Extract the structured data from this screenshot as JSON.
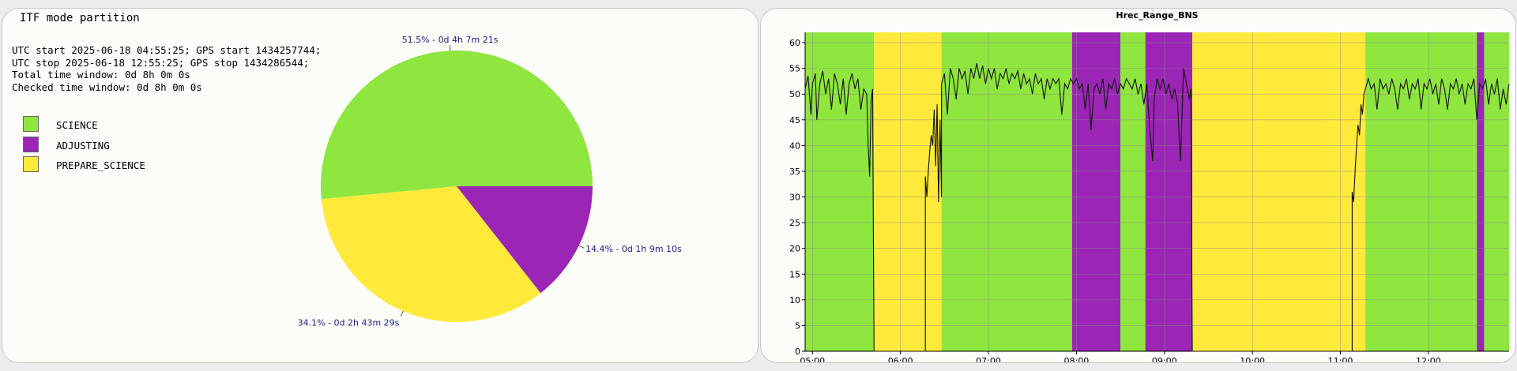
{
  "left_panel": {
    "title": "ITF mode partition",
    "info_lines": [
      "UTC start 2025-06-18 04:55:25; GPS start 1434257744;",
      "UTC stop 2025-06-18 12:55:25; GPS stop 1434286544;",
      "Total time window: 0d 8h 0m 0s",
      "Checked time window: 0d 8h 0m 0s"
    ]
  },
  "colors": {
    "SCIENCE": "#8ee63e",
    "ADJUSTING": "#9b26b6",
    "PREPARE_SCIENCE": "#ffe93b",
    "label": "#1a1a8c"
  },
  "chart_data": [
    {
      "type": "pie",
      "title": "ITF mode partition",
      "legend_position": "left",
      "slices": [
        {
          "name": "SCIENCE",
          "value": 51.5,
          "label": "51.5% - 0d 4h 7m 21s"
        },
        {
          "name": "PREPARE_SCIENCE",
          "value": 34.1,
          "label": "34.1% - 0d 2h 43m 29s"
        },
        {
          "name": "ADJUSTING",
          "value": 14.4,
          "label": "14.4% - 0d 1h 9m 10s"
        }
      ]
    },
    {
      "type": "line",
      "title": "Hrec_Range_BNS",
      "grid": true,
      "xlim": [
        "04:55",
        "12:55"
      ],
      "ylim": [
        0,
        62
      ],
      "x_ticks": [
        "05:00",
        "06:00",
        "07:00",
        "08:00",
        "09:00",
        "10:00",
        "11:00",
        "12:00"
      ],
      "y_ticks": [
        0,
        5,
        10,
        15,
        20,
        25,
        30,
        35,
        40,
        45,
        50,
        55,
        60
      ],
      "mode_bands": [
        {
          "mode": "SCIENCE",
          "start": "04:55",
          "end": "05:42"
        },
        {
          "mode": "PREPARE_SCIENCE",
          "start": "05:42",
          "end": "06:28"
        },
        {
          "mode": "SCIENCE",
          "start": "06:28",
          "end": "07:57"
        },
        {
          "mode": "ADJUSTING",
          "start": "07:57",
          "end": "08:30"
        },
        {
          "mode": "SCIENCE",
          "start": "08:30",
          "end": "08:47"
        },
        {
          "mode": "ADJUSTING",
          "start": "08:47",
          "end": "09:19"
        },
        {
          "mode": "PREPARE_SCIENCE",
          "start": "09:19",
          "end": "11:17"
        },
        {
          "mode": "SCIENCE",
          "start": "11:17",
          "end": "12:33"
        },
        {
          "mode": "ADJUSTING",
          "start": "12:33",
          "end": "12:38"
        },
        {
          "mode": "SCIENCE",
          "start": "12:38",
          "end": "12:55"
        }
      ],
      "series": [
        {
          "points": [
            [
              "04:55",
              51
            ],
            [
              "04:57",
              53.5
            ],
            [
              "04:59",
              46
            ],
            [
              "05:00",
              52
            ],
            [
              "05:02",
              54
            ],
            [
              "05:03",
              45
            ],
            [
              "05:05",
              52
            ],
            [
              "05:07",
              54.5
            ],
            [
              "05:09",
              50
            ],
            [
              "05:11",
              53
            ],
            [
              "05:13",
              47
            ],
            [
              "05:15",
              54
            ],
            [
              "05:17",
              52
            ],
            [
              "05:19",
              48
            ],
            [
              "05:21",
              53
            ],
            [
              "05:23",
              46
            ],
            [
              "05:25",
              52
            ],
            [
              "05:27",
              54
            ],
            [
              "05:29",
              51
            ],
            [
              "05:31",
              53
            ],
            [
              "05:33",
              47
            ],
            [
              "05:35",
              51
            ],
            [
              "05:37",
              50
            ],
            [
              "05:38",
              40
            ],
            [
              "05:39",
              34
            ],
            [
              "05:40",
              49
            ],
            [
              "05:41",
              51
            ],
            [
              "05:42",
              0
            ],
            [
              "06:17",
              0
            ],
            [
              "06:17",
              34
            ],
            [
              "06:18",
              30
            ],
            [
              "06:19",
              35
            ],
            [
              "06:20",
              39
            ],
            [
              "06:21",
              42
            ],
            [
              "06:22",
              40
            ],
            [
              "06:23",
              47
            ],
            [
              "06:24",
              36
            ],
            [
              "06:25",
              48
            ],
            [
              "06:26",
              29
            ],
            [
              "06:27",
              45
            ],
            [
              "06:28",
              30
            ],
            [
              "06:28",
              52
            ],
            [
              "06:30",
              54
            ],
            [
              "06:32",
              46
            ],
            [
              "06:34",
              55
            ],
            [
              "06:36",
              53
            ],
            [
              "06:38",
              49
            ],
            [
              "06:40",
              55
            ],
            [
              "06:42",
              53
            ],
            [
              "06:44",
              54.5
            ],
            [
              "06:46",
              50
            ],
            [
              "06:48",
              55
            ],
            [
              "06:50",
              53
            ],
            [
              "06:52",
              56
            ],
            [
              "06:54",
              53
            ],
            [
              "06:56",
              55.5
            ],
            [
              "06:58",
              52
            ],
            [
              "07:00",
              55
            ],
            [
              "07:02",
              53
            ],
            [
              "07:04",
              55
            ],
            [
              "07:06",
              51
            ],
            [
              "07:08",
              54
            ],
            [
              "07:10",
              53
            ],
            [
              "07:12",
              55
            ],
            [
              "07:14",
              52
            ],
            [
              "07:16",
              54
            ],
            [
              "07:18",
              53
            ],
            [
              "07:20",
              54.5
            ],
            [
              "07:22",
              51
            ],
            [
              "07:24",
              54
            ],
            [
              "07:26",
              52
            ],
            [
              "07:28",
              53
            ],
            [
              "07:30",
              50
            ],
            [
              "07:32",
              54
            ],
            [
              "07:34",
              52
            ],
            [
              "07:36",
              53
            ],
            [
              "07:38",
              49
            ],
            [
              "07:40",
              53
            ],
            [
              "07:42",
              51
            ],
            [
              "07:44",
              53
            ],
            [
              "07:46",
              52
            ],
            [
              "07:48",
              53
            ],
            [
              "07:50",
              46
            ],
            [
              "07:52",
              52
            ],
            [
              "07:54",
              51
            ],
            [
              "07:56",
              53
            ],
            [
              "07:58",
              52
            ],
            [
              "08:00",
              53
            ],
            [
              "08:02",
              51
            ],
            [
              "08:04",
              52
            ],
            [
              "08:06",
              47
            ],
            [
              "08:08",
              52
            ],
            [
              "08:10",
              43
            ],
            [
              "08:12",
              51
            ],
            [
              "08:14",
              52
            ],
            [
              "08:16",
              50
            ],
            [
              "08:18",
              53
            ],
            [
              "08:20",
              47
            ],
            [
              "08:22",
              52
            ],
            [
              "08:24",
              51
            ],
            [
              "08:26",
              53
            ],
            [
              "08:28",
              50
            ],
            [
              "08:30",
              52
            ],
            [
              "08:32",
              51
            ],
            [
              "08:34",
              53
            ],
            [
              "08:36",
              52
            ],
            [
              "08:38",
              51
            ],
            [
              "08:40",
              53
            ],
            [
              "08:42",
              50
            ],
            [
              "08:44",
              52
            ],
            [
              "08:46",
              48
            ],
            [
              "08:48",
              52
            ],
            [
              "08:50",
              43
            ],
            [
              "08:52",
              37
            ],
            [
              "08:53",
              49
            ],
            [
              "08:55",
              53
            ],
            [
              "08:57",
              51
            ],
            [
              "08:59",
              53
            ],
            [
              "09:01",
              50
            ],
            [
              "09:03",
              52
            ],
            [
              "09:05",
              49
            ],
            [
              "09:07",
              51
            ],
            [
              "09:09",
              48
            ],
            [
              "09:10",
              42
            ],
            [
              "09:11",
              37
            ],
            [
              "09:12",
              46
            ],
            [
              "09:13",
              55
            ],
            [
              "09:15",
              52
            ],
            [
              "09:17",
              49
            ],
            [
              "09:18",
              51
            ],
            [
              "09:19",
              0
            ],
            [
              "11:08",
              0
            ],
            [
              "11:08",
              31
            ],
            [
              "11:09",
              29
            ],
            [
              "11:10",
              35
            ],
            [
              "11:11",
              40
            ],
            [
              "11:12",
              44
            ],
            [
              "11:13",
              42
            ],
            [
              "11:14",
              48
            ],
            [
              "11:15",
              46
            ],
            [
              "11:16",
              50
            ],
            [
              "11:17",
              51
            ],
            [
              "11:19",
              53
            ],
            [
              "11:21",
              51
            ],
            [
              "11:23",
              52
            ],
            [
              "11:25",
              47
            ],
            [
              "11:27",
              53
            ],
            [
              "11:29",
              51
            ],
            [
              "11:31",
              52
            ],
            [
              "11:33",
              50
            ],
            [
              "11:35",
              53
            ],
            [
              "11:37",
              51
            ],
            [
              "11:39",
              47
            ],
            [
              "11:41",
              52
            ],
            [
              "11:43",
              51
            ],
            [
              "11:45",
              53
            ],
            [
              "11:47",
              49
            ],
            [
              "11:49",
              52
            ],
            [
              "11:51",
              51
            ],
            [
              "11:53",
              53
            ],
            [
              "11:55",
              47
            ],
            [
              "11:57",
              52
            ],
            [
              "11:59",
              51
            ],
            [
              "12:01",
              53
            ],
            [
              "12:03",
              50
            ],
            [
              "12:05",
              52
            ],
            [
              "12:07",
              48
            ],
            [
              "12:09",
              53
            ],
            [
              "12:11",
              51
            ],
            [
              "12:13",
              47
            ],
            [
              "12:15",
              52
            ],
            [
              "12:17",
              51
            ],
            [
              "12:19",
              53
            ],
            [
              "12:21",
              50
            ],
            [
              "12:23",
              52
            ],
            [
              "12:25",
              48
            ],
            [
              "12:27",
              52
            ],
            [
              "12:29",
              51
            ],
            [
              "12:31",
              53
            ],
            [
              "12:33",
              45
            ],
            [
              "12:35",
              52
            ],
            [
              "12:37",
              51
            ],
            [
              "12:39",
              53
            ],
            [
              "12:41",
              48
            ],
            [
              "12:43",
              52
            ],
            [
              "12:45",
              50
            ],
            [
              "12:47",
              53
            ],
            [
              "12:49",
              47
            ],
            [
              "12:51",
              51
            ],
            [
              "12:53",
              48
            ],
            [
              "12:55",
              52
            ]
          ]
        }
      ]
    }
  ]
}
